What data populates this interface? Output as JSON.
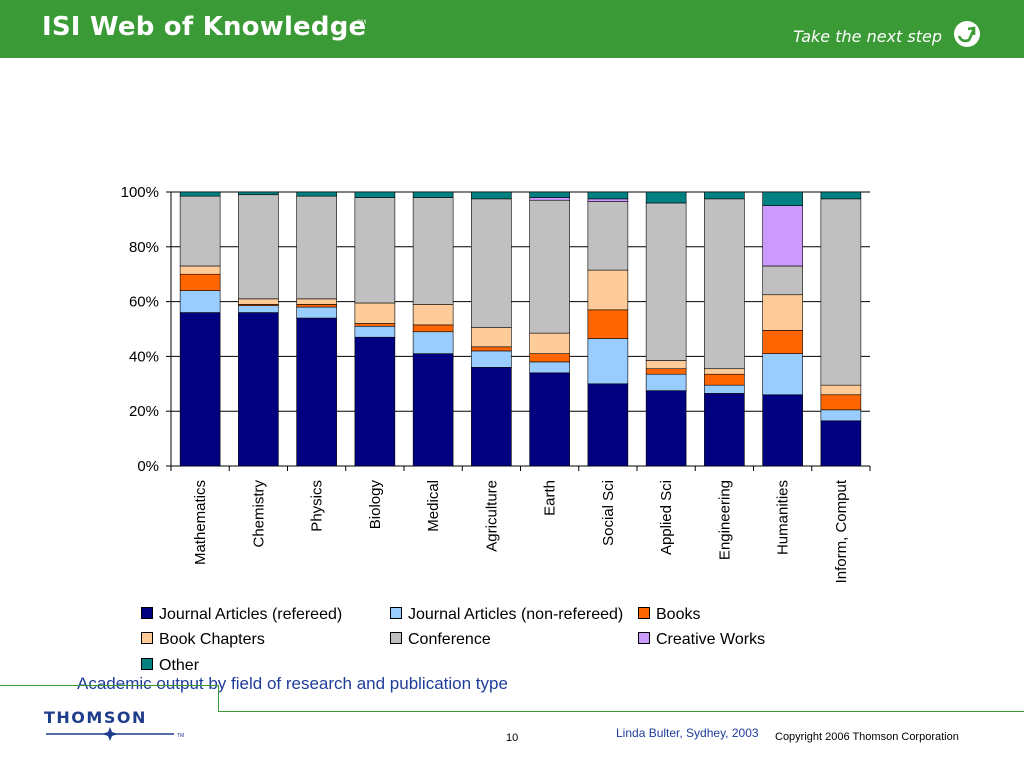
{
  "header": {
    "brand": "ISI Web of Knowledge",
    "brand_mark": "SM",
    "tagline": "Take the next step",
    "tagline_icon": "arrow-circle-icon",
    "color": "#3a9a35"
  },
  "chart_data": {
    "type": "bar",
    "stacked": "percent",
    "categories": [
      "Mathematics",
      "Chemistry",
      "Physics",
      "Biology",
      "Medical",
      "Agriculture",
      "Earth",
      "Social Sci",
      "Applied Sci",
      "Engineering",
      "Humanities",
      "Inform, Comput"
    ],
    "series": [
      {
        "name": "Journal Articles (refereed)",
        "color": "#000080",
        "values": [
          56,
          56,
          54,
          47,
          41,
          36,
          34,
          30,
          27.5,
          26.5,
          26,
          16.5
        ]
      },
      {
        "name": "Journal Articles (non-refereed)",
        "color": "#99ccff",
        "values": [
          8,
          2.5,
          4,
          4,
          8,
          6,
          4,
          16.5,
          6,
          3,
          15,
          4
        ]
      },
      {
        "name": "Books",
        "color": "#ff6600",
        "values": [
          6,
          0.5,
          1,
          1,
          2.5,
          1.5,
          3,
          10.5,
          2,
          4,
          8.5,
          5.5
        ]
      },
      {
        "name": "Book Chapters",
        "color": "#ffcc99",
        "values": [
          3,
          2,
          2,
          7.5,
          7.5,
          7,
          7.5,
          14.5,
          3,
          2,
          13,
          3.5
        ]
      },
      {
        "name": "Conference",
        "color": "#c0c0c0",
        "values": [
          25.5,
          38,
          37.5,
          38.5,
          39,
          47,
          48.5,
          25,
          57.5,
          62,
          10.5,
          68
        ]
      },
      {
        "name": "Creative Works",
        "color": "#cc99ff",
        "values": [
          0,
          0,
          0,
          0,
          0,
          0,
          1,
          1,
          0,
          0,
          22,
          0
        ]
      },
      {
        "name": "Other",
        "color": "#008080",
        "values": [
          1.5,
          1,
          1.5,
          2,
          2,
          2.5,
          2,
          2.5,
          4,
          2.5,
          5,
          2.5
        ]
      }
    ],
    "y_ticks": [
      "0%",
      "20%",
      "40%",
      "60%",
      "80%",
      "100%"
    ],
    "ylim": [
      0,
      100
    ],
    "grid": true,
    "legend_position": "bottom"
  },
  "caption": "Academic output by field of research and publication type",
  "footer": {
    "logo": "THOMSON",
    "logo_mark": "TM",
    "page": "10",
    "author": "Linda Bulter, Sydhey, 2003",
    "copyright": "Copyright 2006 Thomson Corporation"
  }
}
